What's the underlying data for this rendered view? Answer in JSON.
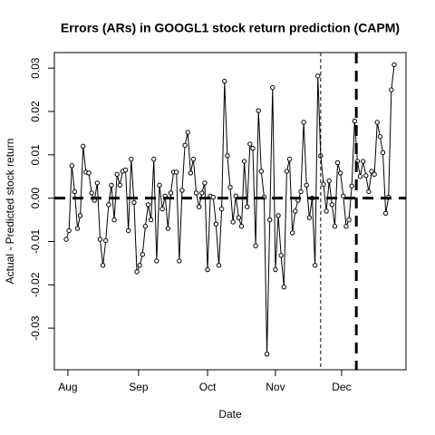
{
  "chart_data": {
    "type": "line",
    "title": "Errors (ARs) in GOOGL1 stock return prediction (CAPM)",
    "xlabel": "Date",
    "ylabel": "Actual - Predicted stock return",
    "x": [
      0,
      1,
      2,
      3,
      4,
      5,
      6,
      7,
      8,
      9,
      10,
      11,
      12,
      13,
      14,
      15,
      16,
      17,
      18,
      19,
      20,
      21,
      22,
      23,
      24,
      25,
      26,
      27,
      28,
      29,
      30,
      31,
      32,
      33,
      34,
      35,
      36,
      37,
      38,
      39,
      40,
      41,
      42,
      43,
      44,
      45,
      46,
      47,
      48,
      49,
      50,
      51,
      52,
      53,
      54,
      55,
      56,
      57,
      58,
      59,
      60,
      61,
      62,
      63,
      64,
      65,
      66,
      67,
      68,
      69,
      70,
      71,
      72,
      73,
      74,
      75,
      76,
      77,
      78,
      79,
      80,
      81,
      82,
      83,
      84,
      85,
      86,
      87,
      88,
      89,
      90,
      91,
      92,
      93,
      94,
      95,
      96,
      97,
      98,
      99,
      100,
      101,
      102,
      103,
      104,
      105,
      106,
      107,
      108,
      109,
      110,
      111,
      112,
      113,
      114,
      115,
      116
    ],
    "values": [
      -0.0095,
      -0.0075,
      0.0075,
      0.0015,
      -0.007,
      -0.004,
      0.012,
      0.006,
      0.0058,
      0.0012,
      -0.0005,
      0.0035,
      -0.0095,
      -0.0155,
      -0.0098,
      -0.0015,
      0.003,
      -0.005,
      0.0055,
      0.003,
      0.0062,
      0.0065,
      -0.0075,
      0.009,
      -0.001,
      -0.017,
      -0.0155,
      -0.013,
      -0.0065,
      -0.0015,
      -0.005,
      0.009,
      -0.0145,
      0.003,
      -0.0025,
      0.0005,
      -0.007,
      0.0012,
      0.006,
      0.006,
      -0.0145,
      0.0018,
      0.0122,
      0.0152,
      0.0058,
      0.009,
      0.0012,
      -0.002,
      0.0012,
      0.0035,
      -0.0165,
      0.0005,
      0.0002,
      -0.006,
      -0.0155,
      -0.0025,
      0.027,
      0.0098,
      0.0025,
      -0.0055,
      0.0005,
      -0.0045,
      -0.0065,
      0.0085,
      -0.002,
      0.0125,
      0.0115,
      -0.011,
      0.0202,
      0.0062,
      0.0002,
      -0.036,
      -0.005,
      0.0255,
      -0.0165,
      -0.004,
      -0.0132,
      -0.0205,
      0.0062,
      0.009,
      -0.008,
      -0.003,
      -0.0005,
      0.0015,
      0.0175,
      0.003,
      -0.0045,
      0,
      -0.0155,
      0.0282,
      0.0098,
      0.0032,
      -0.003,
      0.004,
      -0.0015,
      -0.0065,
      0.0082,
      0.0058,
      0.0005,
      -0.0065,
      -0.005,
      0.0028,
      0.0178,
      0.0085,
      0.005,
      0.0085,
      0.0052,
      0.0015,
      0.0062,
      0.0055,
      0.0175,
      0.0142,
      0.0105,
      -0.0035,
      0.0002,
      0.025,
      0.0308
    ],
    "color": "#000000",
    "xlim": [
      -4.17,
      120.17
    ],
    "xticks": [
      {
        "value": 0.6,
        "label": "Aug"
      },
      {
        "value": 25.6,
        "label": "Sep"
      },
      {
        "value": 50,
        "label": "Oct"
      },
      {
        "value": 74,
        "label": "Nov"
      },
      {
        "value": 97.4,
        "label": "Dec"
      }
    ],
    "ylim": [
      -0.0396,
      0.0336
    ],
    "yticks": [
      -0.03,
      -0.02,
      -0.01,
      {
        "value": 0,
        "label": "0.00"
      },
      0.01,
      0.02,
      0.03
    ],
    "hline": {
      "y": 0,
      "width": 3
    },
    "vlines": [
      {
        "x": 90,
        "width": 1
      },
      {
        "x": 102.6,
        "width": 3
      }
    ]
  }
}
